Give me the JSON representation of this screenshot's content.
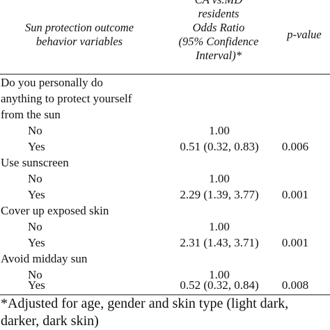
{
  "table": {
    "header": {
      "behavior_line1": "Sun protection outcome",
      "behavior_line2": "behavior variables",
      "or_line1": "CA vs.MD",
      "or_line2": "residents",
      "or_line3": "Odds Ratio",
      "or_line4": "(95% Confidence",
      "or_line5": "Interval)*",
      "pvalue": "p-value"
    },
    "groups": [
      {
        "label_lines": [
          "Do you personally do",
          "anything to protect yourself",
          "from the sun"
        ],
        "rows": [
          {
            "level": "No",
            "or": "1.00",
            "p": ""
          },
          {
            "level": "Yes",
            "or": "0.51 (0.32, 0.83)",
            "p": "0.006"
          }
        ]
      },
      {
        "label_lines": [
          "Use sunscreen"
        ],
        "rows": [
          {
            "level": "No",
            "or": "1.00",
            "p": ""
          },
          {
            "level": "Yes",
            "or": "2.29 (1.39, 3.77)",
            "p": "0.001"
          }
        ]
      },
      {
        "label_lines": [
          "Cover up exposed skin"
        ],
        "rows": [
          {
            "level": "No",
            "or": "1.00",
            "p": ""
          },
          {
            "level": "Yes",
            "or": "2.31 (1.43, 3.71)",
            "p": "0.001"
          }
        ]
      },
      {
        "label_lines": [
          "Avoid midday sun"
        ],
        "rows": [
          {
            "level": "No",
            "or": "1.00",
            "p": ""
          },
          {
            "level": "Yes",
            "or": "0.52 (0.32, 0.84)",
            "p": "0.008"
          }
        ]
      }
    ],
    "footnote": "*Adjusted for age, gender and skin type (light dark, darker, dark skin)"
  }
}
